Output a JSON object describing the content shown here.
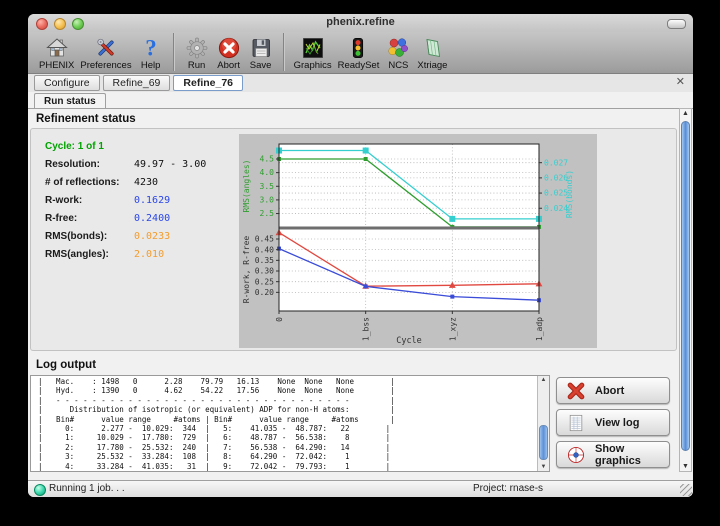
{
  "window": {
    "title": "phenix.refine"
  },
  "toolbar": {
    "items": [
      {
        "label": "PHENIX",
        "icon": "phenix-home-icon"
      },
      {
        "label": "Preferences",
        "icon": "preferences-tools-icon"
      },
      {
        "label": "Help",
        "icon": "help-question-icon"
      },
      {
        "separator": true
      },
      {
        "label": "Run",
        "icon": "run-gear-icon"
      },
      {
        "label": "Abort",
        "icon": "abort-circle-icon"
      },
      {
        "label": "Save",
        "icon": "save-floppy-icon"
      },
      {
        "separator": true
      },
      {
        "label": "Graphics",
        "icon": "graphics-density-icon"
      },
      {
        "label": "ReadySet",
        "icon": "readyset-trafficlight-icon"
      },
      {
        "label": "NCS",
        "icon": "ncs-spheres-icon"
      },
      {
        "label": "Xtriage",
        "icon": "xtriage-crystal-icon"
      }
    ]
  },
  "tabs": [
    {
      "label": "Configure",
      "active": false
    },
    {
      "label": "Refine_69",
      "active": false
    },
    {
      "label": "Refine_76",
      "active": true
    }
  ],
  "subtab": {
    "label": "Run status"
  },
  "refinement": {
    "heading": "Refinement status",
    "stats": [
      {
        "label": "Cycle: 1 of 1",
        "value": "",
        "type": "green"
      },
      {
        "label": "Resolution:",
        "value": "49.97 - 3.00",
        "type": "plain"
      },
      {
        "label": "# of reflections:",
        "value": "4230",
        "type": "plain"
      },
      {
        "label": "R-work:",
        "value": "0.1629",
        "type": "blue"
      },
      {
        "label": "R-free:",
        "value": "0.2400",
        "type": "blue"
      },
      {
        "label": "RMS(bonds):",
        "value": "0.0233",
        "type": "orange"
      },
      {
        "label": "RMS(angles):",
        "value": "2.010",
        "type": "orange"
      }
    ]
  },
  "chart_data": {
    "type": "line",
    "x_categories": [
      "0",
      "1_bss",
      "1_xyz",
      "1_adp"
    ],
    "xlabel": "Cycle",
    "grid": "dotted",
    "legend": "none",
    "subplots": [
      {
        "ylabel": "RMS(angles)",
        "ylabel_color": "#2e9e2e",
        "yticks": [
          "2.5",
          "3.0",
          "3.5",
          "4.0",
          "4.5"
        ],
        "ylim": [
          1.97,
          5.05
        ],
        "right_axis": {
          "ylabel": "RMS(bonds)",
          "color": "#35cfcf",
          "yticks": [
            "0.024",
            "0.025",
            "0.026",
            "0.027"
          ],
          "ylim": [
            0.0227,
            0.02823
          ]
        },
        "series": [
          {
            "name": "RMS(angles)",
            "axis": "left",
            "color": "#2e9e2e",
            "marker": "square",
            "marker_size": 4,
            "values": [
              4.5,
              4.5,
              2.01,
              2.01
            ]
          },
          {
            "name": "RMS(bonds)",
            "axis": "right",
            "color": "#35cfcf",
            "marker": "square",
            "marker_size": 6,
            "values": [
              0.0278,
              0.0278,
              0.0233,
              0.0233
            ]
          }
        ]
      },
      {
        "ylabel": "R-work, R-free",
        "ylabel_color": "#333333",
        "yticks": [
          "0.20",
          "0.25",
          "0.30",
          "0.35",
          "0.40",
          "0.45"
        ],
        "ylim": [
          0.1126,
          0.5015
        ],
        "series": [
          {
            "name": "R-free",
            "axis": "left",
            "color": "#e04840",
            "marker": "triangle",
            "marker_size": 6,
            "values": [
              0.48,
              0.229,
              0.233,
              0.24
            ]
          },
          {
            "name": "R-work",
            "axis": "left",
            "color": "#3a4cd8",
            "marker": "square",
            "marker_size": 4,
            "values": [
              0.405,
              0.228,
              0.18,
              0.163
            ]
          }
        ]
      }
    ]
  },
  "log": {
    "heading": "Log output",
    "lines": [
      "|   Mac.    : 1498   0      2.28    79.79   16.13    None  None   None        |",
      "|   Hyd.    : 1390   0      4.62    54.22   17.56    None  None   None        |",
      "|   - - - - - - - - - - - - - - - - - - - - - - - - - - - - - - - - -         |",
      "|      Distribution of isotropic (or equivalent) ADP for non-H atoms:         |",
      "|   Bin#      value range     #atoms | Bin#      value range     #atoms       |",
      "|     0:      2.277 -  10.029:  344  |   5:    41.035 -  48.787:   22        |",
      "|     1:     10.029 -  17.780:  729  |   6:    48.787 -  56.538:    8        |",
      "|     2:     17.780 -  25.532:  240  |   7:    56.538 -  64.290:   14        |",
      "|     3:     25.532 -  33.284:  108  |   8:    64.290 -  72.042:    1        |",
      "|     4:     33.284 -  41.035:   31  |   9:    72.042 -  79.793:    1        |"
    ]
  },
  "actions": [
    {
      "label": "Abort",
      "icon": "abort-x-icon"
    },
    {
      "label": "View log",
      "icon": "view-log-icon"
    },
    {
      "label": "Show graphics",
      "icon": "show-graphics-icon"
    }
  ],
  "statusbar": {
    "status": "Running 1 job. . .",
    "project": "Project: rnase-s"
  },
  "colors": {
    "stat_green": "#00a400",
    "stat_blue": "#2a46e8",
    "stat_orange": "#f49c2c",
    "chart_bg": "#c1c1c1"
  }
}
